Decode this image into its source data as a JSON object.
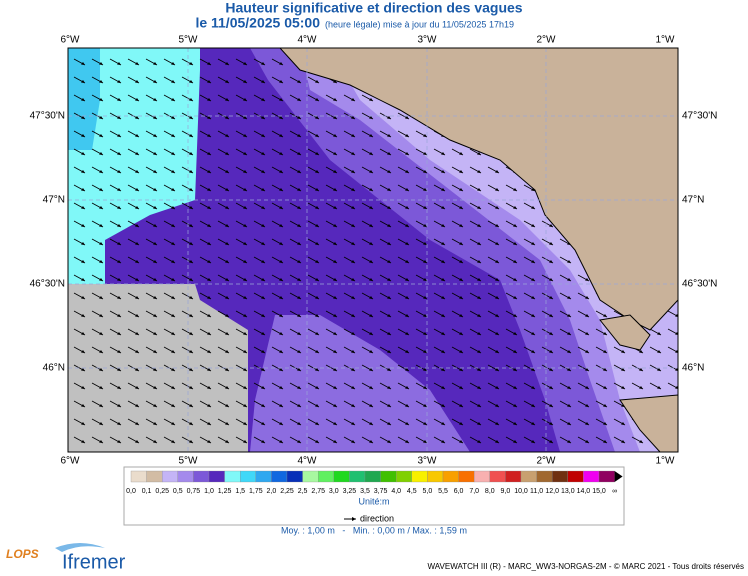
{
  "header": {
    "title": "Hauteur significative et direction des vagues",
    "date": "le 11/05/2025 05:00",
    "note": "(heure légale) mise à jour du 11/05/2025 17h19"
  },
  "axes": {
    "longitudes": [
      "6°W",
      "5°W",
      "4°W",
      "3°W",
      "2°W",
      "1°W"
    ],
    "latitudes": [
      "47°30'N",
      "47°N",
      "46°30'N",
      "46°N"
    ]
  },
  "legend": {
    "labels": [
      "0,0",
      "0,1",
      "0,25",
      "0,5",
      "0,75",
      "1,0",
      "1,25",
      "1,5",
      "1,75",
      "2,0",
      "2,25",
      "2,5",
      "2,75",
      "3,0",
      "3,25",
      "3,5",
      "3,75",
      "4,0",
      "4,5",
      "5,0",
      "5,5",
      "6,0",
      "7,0",
      "8,0",
      "9,0",
      "10,0",
      "11,0",
      "12,0",
      "13,0",
      "14,0",
      "15,0",
      "∞"
    ],
    "colors": [
      "#eadccc",
      "#d2bca4",
      "#c4b4f6",
      "#a48aec",
      "#7c58d8",
      "#5628bc",
      "#80f8f8",
      "#40d8f8",
      "#30a8f0",
      "#1068e0",
      "#0830b8",
      "#a8f8a0",
      "#60f060",
      "#20d820",
      "#20c070",
      "#20a850",
      "#40c000",
      "#80d000",
      "#f8f000",
      "#f8c800",
      "#f8a000",
      "#f87000",
      "#f8b0b0",
      "#f05050",
      "#d02020",
      "#c8a070",
      "#a06830",
      "#703010",
      "#c00000",
      "#f000f0",
      "#900060"
    ],
    "unit": "Unité:m",
    "direction": "direction",
    "stats": "Moy. : 1,00 m   -   Min. : 0,00 m / Max. : 1,59 m"
  },
  "logos": {
    "lops": "LOPS",
    "ifremer": "Ifremer"
  },
  "footer": "WAVEWATCH III (R) - MARC_WW3-NORGAS-2M - © MARC 2021 - Tous droits réservés"
}
